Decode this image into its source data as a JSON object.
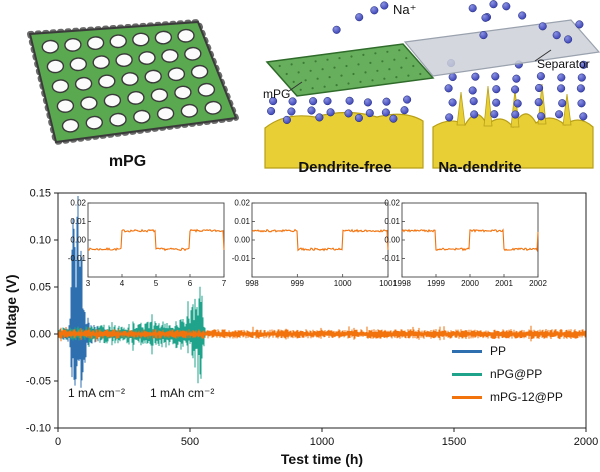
{
  "figure": {
    "background": "#ffffff"
  },
  "schematic": {
    "mpg_caption": "mPG",
    "na_ion_label": "Na⁺",
    "separator_label": "Separator",
    "mpg_layer_label": "mPG",
    "left_surface_label": "Dendrite-free",
    "right_surface_label": "Na-dendrite",
    "colors": {
      "graphene_green": "#5aa84f",
      "graphene_dark": "#2f6b2a",
      "sodium_yellow": "#e7cf35",
      "sodium_yellow_dark": "#b89f17",
      "ion_blue": "#3a41b5",
      "separator_gray": "#ccd0d8"
    }
  },
  "chart_data": {
    "type": "line",
    "title": "",
    "xlabel": "Test time (h)",
    "ylabel": "Voltage (V)",
    "xlim": [
      0,
      2000
    ],
    "ylim": [
      -0.1,
      0.15
    ],
    "xticks": [
      0,
      500,
      1000,
      1500,
      2000
    ],
    "yticks": [
      0.15,
      0.1,
      0.05,
      0,
      -0.05,
      -0.1
    ],
    "grid": false,
    "legend_position": "lower right",
    "annotations": [
      "1 mA cm⁻²",
      "1 mAh cm⁻²"
    ],
    "series": [
      {
        "name": "PP",
        "color": "#2e6fb0",
        "description": "short-circuits early; large voltage spikes around 40-120 h",
        "envelope": [
          [
            0,
            0.006
          ],
          [
            30,
            0.007
          ],
          [
            42,
            0.012
          ],
          [
            50,
            0.08
          ],
          [
            58,
            0.15
          ],
          [
            75,
            0.16
          ],
          [
            88,
            0.13
          ],
          [
            96,
            0.05
          ],
          [
            108,
            0.02
          ],
          [
            125,
            0.012
          ],
          [
            150,
            0.008
          ],
          [
            200,
            0.005
          ],
          [
            255,
            0.003
          ],
          [
            260,
            0
          ]
        ],
        "end": 260,
        "neg_cap": 0.06
      },
      {
        "name": "nPG@PP",
        "color": "#1fa38b",
        "description": "polarization grows, fails near 550 h with spikes to ±0.06 V",
        "envelope": [
          [
            0,
            0.007
          ],
          [
            120,
            0.009
          ],
          [
            250,
            0.011
          ],
          [
            380,
            0.014
          ],
          [
            460,
            0.017
          ],
          [
            500,
            0.022
          ],
          [
            520,
            0.04
          ],
          [
            535,
            0.062
          ],
          [
            545,
            0.05
          ],
          [
            552,
            0.02
          ],
          [
            558,
            0.008
          ],
          [
            560,
            0
          ]
        ],
        "end": 560,
        "neg_cap": 0.075
      },
      {
        "name": "mPG-12@PP",
        "color": "#f2720c",
        "description": "stable ±0.005 V polarization over 2000 h",
        "envelope": [
          [
            0,
            0.005
          ],
          [
            1000,
            0.005
          ],
          [
            2000,
            0.0055
          ]
        ],
        "end": 2000,
        "neg_cap": 0.01
      }
    ],
    "insets": [
      {
        "xlim": [
          3,
          7
        ],
        "xticks": [
          3,
          4,
          5,
          6,
          7
        ],
        "ylim": [
          -0.02,
          0.02
        ],
        "yticks": [
          0.02,
          0.01,
          0,
          -0.01
        ],
        "amplitude": 0.005,
        "period_h": 2,
        "series": "mPG-12@PP"
      },
      {
        "xlim": [
          998,
          1001
        ],
        "xticks": [
          998,
          999,
          1000,
          1001
        ],
        "ylim": [
          -0.02,
          0.02
        ],
        "yticks": [
          0.02,
          0.01,
          0,
          -0.01
        ],
        "amplitude": 0.005,
        "period_h": 2,
        "series": "mPG-12@PP"
      },
      {
        "xlim": [
          1998,
          2002
        ],
        "xticks": [
          1998,
          1999,
          2000,
          2001,
          2002
        ],
        "ylim": [
          -0.02,
          0.02
        ],
        "yticks": [
          0.02,
          0.01,
          0,
          -0.01
        ],
        "amplitude": 0.005,
        "period_h": 2,
        "series": "mPG-12@PP"
      }
    ]
  }
}
